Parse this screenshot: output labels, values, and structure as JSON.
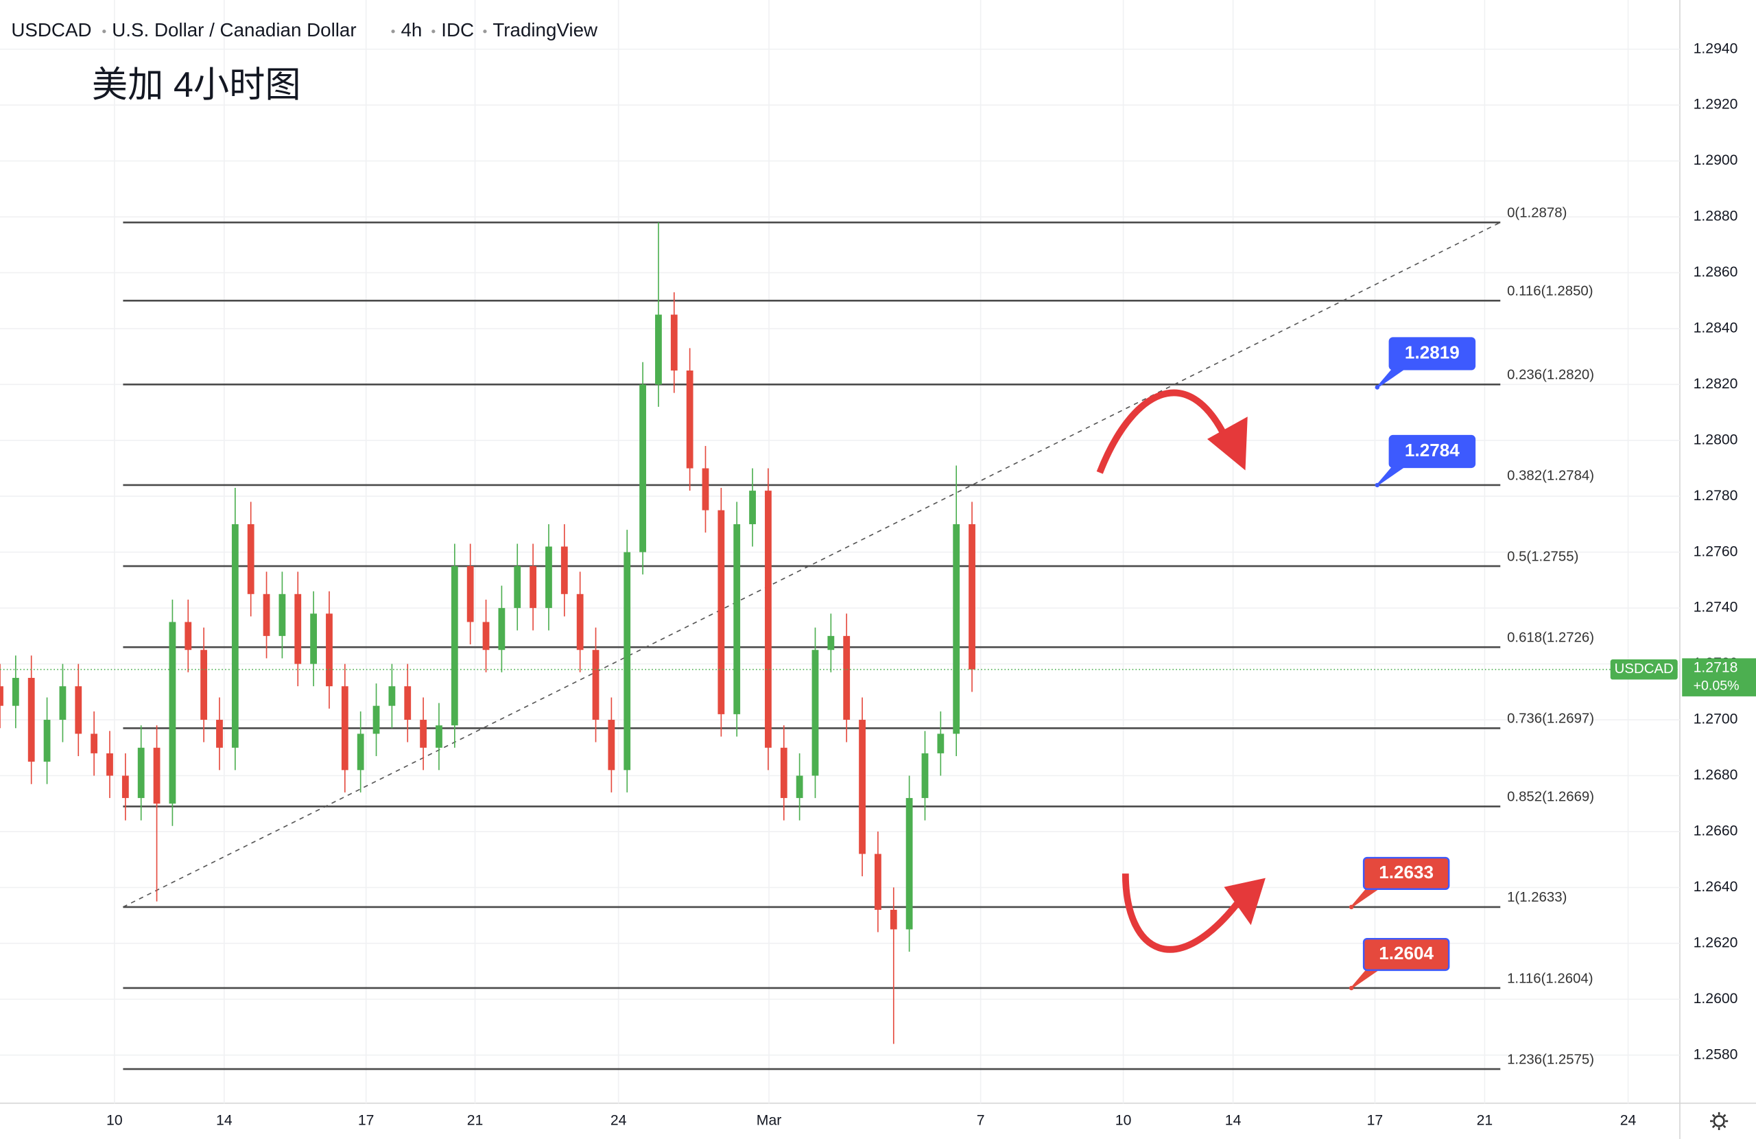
{
  "chart_data": {
    "type": "candlestick",
    "symbol": "USDCAD",
    "name": "U.S. Dollar / Canadian Dollar",
    "interval": "4h",
    "exchange": "IDC",
    "source": "TradingView",
    "annotation": "美加 4小时图",
    "up_color": "#4caf50",
    "down_color": "#e5493d",
    "ylim": [
      1.25628,
      1.29576
    ],
    "yticks": [
      {
        "value": 1.258,
        "label": "1.2580"
      },
      {
        "value": 1.26,
        "label": "1.2600"
      },
      {
        "value": 1.262,
        "label": "1.2620"
      },
      {
        "value": 1.264,
        "label": "1.2640"
      },
      {
        "value": 1.266,
        "label": "1.2660"
      },
      {
        "value": 1.268,
        "label": "1.2680"
      },
      {
        "value": 1.27,
        "label": "1.2700"
      },
      {
        "value": 1.272,
        "label": "1.2720"
      },
      {
        "value": 1.274,
        "label": "1.2740"
      },
      {
        "value": 1.276,
        "label": "1.2760"
      },
      {
        "value": 1.278,
        "label": "1.2780"
      },
      {
        "value": 1.28,
        "label": "1.2800"
      },
      {
        "value": 1.282,
        "label": "1.2820"
      },
      {
        "value": 1.284,
        "label": "1.2840"
      },
      {
        "value": 1.286,
        "label": "1.2860"
      },
      {
        "value": 1.288,
        "label": "1.2880"
      },
      {
        "value": 1.29,
        "label": "1.2900"
      },
      {
        "value": 1.292,
        "label": "1.2920"
      },
      {
        "value": 1.294,
        "label": "1.2940"
      }
    ],
    "xlim": [
      0,
      214.3
    ],
    "xticks": [
      {
        "value": 14.6,
        "label": "10"
      },
      {
        "value": 28.6,
        "label": "14"
      },
      {
        "value": 46.7,
        "label": "17"
      },
      {
        "value": 60.6,
        "label": "21"
      },
      {
        "value": 78.9,
        "label": "24"
      },
      {
        "value": 98.1,
        "label": "Mar"
      },
      {
        "value": 125.1,
        "label": "7"
      },
      {
        "value": 143.3,
        "label": "10"
      },
      {
        "value": 157.3,
        "label": "14"
      },
      {
        "value": 175.4,
        "label": "17"
      },
      {
        "value": 189.4,
        "label": "21"
      },
      {
        "value": 207.7,
        "label": "24"
      }
    ],
    "x": [
      0,
      2,
      4,
      6,
      8,
      10,
      12,
      14,
      16,
      18,
      20,
      22,
      24,
      26,
      28,
      30,
      32,
      34,
      36,
      38,
      40,
      42,
      44,
      46,
      48,
      50,
      52,
      54,
      56,
      58,
      60,
      62,
      64,
      66,
      68,
      70,
      72,
      74,
      76,
      78,
      80,
      82,
      84,
      86,
      88,
      90,
      92,
      94,
      96,
      98,
      100,
      102,
      104,
      106,
      108,
      110,
      112,
      114,
      116,
      118,
      120,
      122,
      124
    ],
    "open": [
      1.2712,
      1.2705,
      1.2715,
      1.2685,
      1.27,
      1.2712,
      1.2695,
      1.2688,
      1.268,
      1.2672,
      1.269,
      1.267,
      1.2735,
      1.2725,
      1.27,
      1.269,
      1.277,
      1.2745,
      1.273,
      1.2745,
      1.272,
      1.2738,
      1.2712,
      1.2682,
      1.2695,
      1.2705,
      1.2712,
      1.27,
      1.269,
      1.2698,
      1.2755,
      1.2735,
      1.2725,
      1.274,
      1.2755,
      1.274,
      1.2762,
      1.2745,
      1.2725,
      1.27,
      1.2682,
      1.276,
      1.282,
      1.2845,
      1.2825,
      1.279,
      1.2775,
      1.2702,
      1.277,
      1.2782,
      1.269,
      1.2672,
      1.268,
      1.2725,
      1.273,
      1.27,
      1.2652,
      1.2632,
      1.2625,
      1.2672,
      1.2688,
      1.2695,
      1.277
    ],
    "high": [
      1.272,
      1.2723,
      1.2723,
      1.2708,
      1.272,
      1.272,
      1.2703,
      1.2696,
      1.2688,
      1.2698,
      1.2698,
      1.2743,
      1.2743,
      1.2733,
      1.2708,
      1.2783,
      1.2778,
      1.2753,
      1.2753,
      1.2753,
      1.2746,
      1.2746,
      1.272,
      1.2703,
      1.2713,
      1.272,
      1.272,
      1.2708,
      1.2706,
      1.2763,
      1.2763,
      1.2743,
      1.2748,
      1.2763,
      1.2763,
      1.277,
      1.277,
      1.2753,
      1.2733,
      1.2708,
      1.2768,
      1.2828,
      1.2878,
      1.2853,
      1.2833,
      1.2798,
      1.2783,
      1.2778,
      1.279,
      1.279,
      1.2698,
      1.2688,
      1.2733,
      1.2738,
      1.2738,
      1.2708,
      1.266,
      1.264,
      1.268,
      1.2696,
      1.2703,
      1.2791,
      1.2778
    ],
    "low": [
      1.2697,
      1.2697,
      1.2677,
      1.2677,
      1.2692,
      1.2687,
      1.268,
      1.2672,
      1.2664,
      1.2664,
      1.2635,
      1.2662,
      1.2717,
      1.2692,
      1.2682,
      1.2682,
      1.2737,
      1.2722,
      1.2722,
      1.2712,
      1.2712,
      1.2704,
      1.2674,
      1.2674,
      1.2687,
      1.2697,
      1.2692,
      1.2682,
      1.2682,
      1.269,
      1.2727,
      1.2717,
      1.2717,
      1.2732,
      1.2732,
      1.2732,
      1.2737,
      1.2717,
      1.2692,
      1.2674,
      1.2674,
      1.2752,
      1.2812,
      1.2817,
      1.2782,
      1.2767,
      1.2694,
      1.2694,
      1.2762,
      1.2682,
      1.2664,
      1.2664,
      1.2672,
      1.2717,
      1.2692,
      1.2644,
      1.2624,
      1.2584,
      1.2617,
      1.2664,
      1.268,
      1.2687,
      1.271
    ],
    "close": [
      1.2705,
      1.2715,
      1.2685,
      1.27,
      1.2712,
      1.2695,
      1.2688,
      1.268,
      1.2672,
      1.269,
      1.267,
      1.2735,
      1.2725,
      1.27,
      1.269,
      1.277,
      1.2745,
      1.273,
      1.2745,
      1.272,
      1.2738,
      1.2712,
      1.2682,
      1.2695,
      1.2705,
      1.2712,
      1.27,
      1.269,
      1.2698,
      1.2755,
      1.2735,
      1.2725,
      1.274,
      1.2755,
      1.274,
      1.2762,
      1.2745,
      1.2725,
      1.27,
      1.2682,
      1.276,
      1.282,
      1.2845,
      1.2825,
      1.279,
      1.2775,
      1.2702,
      1.277,
      1.2782,
      1.269,
      1.2672,
      1.268,
      1.2725,
      1.273,
      1.27,
      1.2652,
      1.2632,
      1.2625,
      1.2672,
      1.2688,
      1.2695,
      1.277,
      1.2718
    ],
    "fib_x": [
      15.7,
      191.4
    ],
    "fib_levels": [
      {
        "value": 1.2878,
        "label": "0(1.2878)"
      },
      {
        "value": 1.285,
        "label": "0.116(1.2850)"
      },
      {
        "value": 1.282,
        "label": "0.236(1.2820)"
      },
      {
        "value": 1.2784,
        "label": "0.382(1.2784)"
      },
      {
        "value": 1.2755,
        "label": "0.5(1.2755)"
      },
      {
        "value": 1.2726,
        "label": "0.618(1.2726)"
      },
      {
        "value": 1.2697,
        "label": "0.736(1.2697)"
      },
      {
        "value": 1.2669,
        "label": "0.852(1.2669)"
      },
      {
        "value": 1.2633,
        "label": "1(1.2633)"
      },
      {
        "value": 1.2604,
        "label": "1.116(1.2604)"
      },
      {
        "value": 1.2575,
        "label": "1.236(1.2575)"
      }
    ],
    "trendline": {
      "x": [
        15.7,
        191.4
      ],
      "y": [
        1.2633,
        1.2878
      ]
    },
    "callouts": [
      {
        "value": 1.2819,
        "x": 175.7,
        "color": "#3d5afe"
      },
      {
        "value": 1.2784,
        "x": 175.7,
        "color": "#3d5afe"
      },
      {
        "value": 1.2633,
        "x": 172.4,
        "color": "#e5493d"
      },
      {
        "value": 1.2604,
        "x": 172.4,
        "color": "#e5493d"
      }
    ],
    "last_price": {
      "value": 1.2718,
      "change": "+0.05%",
      "color": "#4caf50"
    }
  }
}
